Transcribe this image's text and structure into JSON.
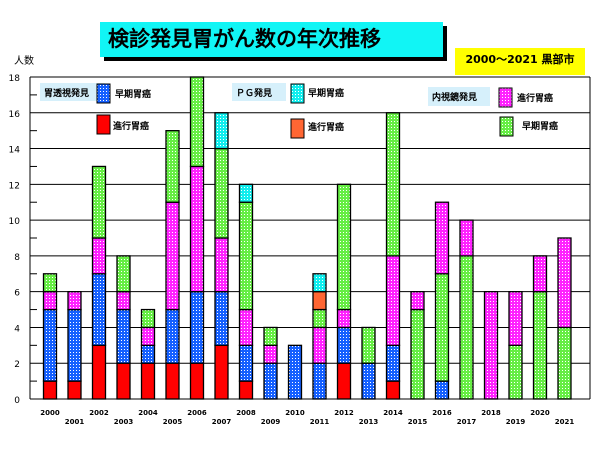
{
  "chart_data": {
    "type": "bar",
    "stacked": true,
    "title": "検診発見胃がん数の年次推移",
    "subtitle": "2000～2021 黒部市",
    "ylabel": "人数",
    "ylim": [
      0,
      18
    ],
    "yticks": [
      "0",
      "2",
      "4",
      "6",
      "8",
      "10",
      "12",
      "14",
      "16",
      "18"
    ],
    "grid": true,
    "legend_groups": [
      {
        "label": "胃透視発見",
        "items": [
          {
            "key": "xe",
            "label": "早期胃癌"
          },
          {
            "key": "xa",
            "label": "進行胃癌"
          }
        ]
      },
      {
        "label": "ＰＧ発見",
        "items": [
          {
            "key": "pe",
            "label": "早期胃癌"
          },
          {
            "key": "pa",
            "label": "進行胃癌"
          }
        ]
      },
      {
        "label": "内視鏡発見",
        "items": [
          {
            "key": "ea",
            "label": "進行胃癌"
          },
          {
            "key": "ee",
            "label": "早期胃癌"
          }
        ]
      }
    ],
    "colors": {
      "xa": "#ff0000",
      "xe": "#1560ff",
      "pa": "#ff6633",
      "pe": "#11eeee",
      "ea": "#ff22ff",
      "ee": "#66ee44"
    },
    "categories": [
      "2000",
      "2001",
      "2002",
      "2003",
      "2004",
      "2005",
      "2006",
      "2007",
      "2008",
      "2009",
      "2010",
      "2011",
      "2012",
      "2013",
      "2014",
      "2015",
      "2016",
      "2017",
      "2018",
      "2019",
      "2020",
      "2021"
    ],
    "stacks": [
      [
        [
          "xa",
          1
        ],
        [
          "xe",
          4
        ],
        [
          "ea",
          1
        ],
        [
          "ee",
          1
        ]
      ],
      [
        [
          "xa",
          1
        ],
        [
          "xe",
          4
        ],
        [
          "ea",
          1
        ]
      ],
      [
        [
          "xa",
          3
        ],
        [
          "xe",
          4
        ],
        [
          "ea",
          2
        ],
        [
          "ee",
          4
        ]
      ],
      [
        [
          "xa",
          2
        ],
        [
          "xe",
          3
        ],
        [
          "ea",
          1
        ],
        [
          "ee",
          2
        ]
      ],
      [
        [
          "xa",
          2
        ],
        [
          "xe",
          1
        ],
        [
          "ea",
          1
        ],
        [
          "ee",
          1
        ]
      ],
      [
        [
          "xa",
          2
        ],
        [
          "xe",
          3
        ],
        [
          "ea",
          6
        ],
        [
          "ee",
          4
        ]
      ],
      [
        [
          "xa",
          2
        ],
        [
          "xe",
          4
        ],
        [
          "ea",
          7
        ],
        [
          "ee",
          5
        ]
      ],
      [
        [
          "xa",
          3
        ],
        [
          "xe",
          3
        ],
        [
          "ea",
          3
        ],
        [
          "ee",
          5
        ],
        [
          "pe",
          2
        ]
      ],
      [
        [
          "xa",
          1
        ],
        [
          "xe",
          2
        ],
        [
          "ea",
          2
        ],
        [
          "ee",
          6
        ],
        [
          "pe",
          1
        ]
      ],
      [
        [
          "xe",
          2
        ],
        [
          "ea",
          1
        ],
        [
          "ee",
          1
        ]
      ],
      [
        [
          "xe",
          3
        ]
      ],
      [
        [
          "xe",
          2
        ],
        [
          "ea",
          2
        ],
        [
          "ee",
          1
        ],
        [
          "pa",
          1
        ],
        [
          "pe",
          1
        ]
      ],
      [
        [
          "xa",
          2
        ],
        [
          "xe",
          2
        ],
        [
          "ea",
          1
        ],
        [
          "ee",
          7
        ]
      ],
      [
        [
          "xe",
          2
        ],
        [
          "ee",
          2
        ]
      ],
      [
        [
          "xa",
          1
        ],
        [
          "xe",
          2
        ],
        [
          "ea",
          5
        ],
        [
          "ee",
          8
        ]
      ],
      [
        [
          "ee",
          5
        ],
        [
          "ea",
          1
        ]
      ],
      [
        [
          "xe",
          1
        ],
        [
          "ee",
          6
        ],
        [
          "ea",
          4
        ]
      ],
      [
        [
          "ee",
          8
        ],
        [
          "ea",
          2
        ]
      ],
      [
        [
          "ea",
          6
        ]
      ],
      [
        [
          "ee",
          3
        ],
        [
          "ea",
          3
        ]
      ],
      [
        [
          "ee",
          6
        ],
        [
          "ea",
          2
        ]
      ],
      [
        [
          "ee",
          4
        ],
        [
          "ea",
          5
        ]
      ]
    ]
  }
}
